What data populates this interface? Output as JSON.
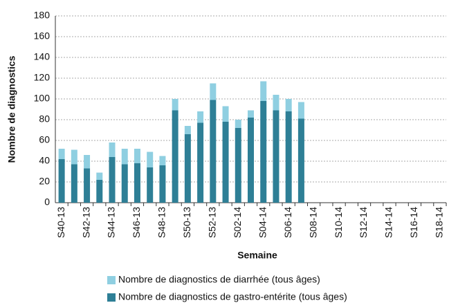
{
  "chart_data": {
    "type": "stacked_bar",
    "y_label": "Nombre de diagnostics",
    "x_label": "Semaine",
    "categories": [
      "S40-13",
      null,
      "S42-13",
      null,
      "S44-13",
      null,
      "S46-13",
      null,
      "S48-13",
      null,
      "S50-13",
      null,
      "S52-13",
      null,
      "S02-14",
      null,
      "S04-14",
      null,
      "S06-14",
      null,
      "S08-14",
      null,
      "S10-14",
      null,
      "S12-14",
      null,
      "S14-14",
      null,
      "S16-14",
      null,
      "S18-14"
    ],
    "series": [
      {
        "name": "Nombre de diagnostics de gastro-entérite (tous âges)",
        "color": "#2e7f96",
        "values": [
          42,
          37,
          33,
          22,
          44,
          37,
          38,
          34,
          36,
          89,
          66,
          77,
          99,
          78,
          72,
          82,
          98,
          89,
          88,
          81,
          null,
          null,
          null,
          null,
          null,
          null,
          null,
          null,
          null,
          null,
          null
        ]
      },
      {
        "name": "Nombre de diagnostics de diarrhée (tous âges)",
        "color": "#8fcfe1",
        "values": [
          10,
          14,
          13,
          7,
          14,
          15,
          14,
          15,
          9,
          11,
          8,
          11,
          16,
          15,
          8,
          7,
          19,
          15,
          12,
          16,
          null,
          null,
          null,
          null,
          null,
          null,
          null,
          null,
          null,
          null,
          null
        ]
      }
    ],
    "legend_order": [
      1,
      0
    ],
    "ylim": [
      0,
      180
    ],
    "yticks": [
      0,
      20,
      40,
      60,
      80,
      100,
      120,
      140,
      160,
      180
    ],
    "grid": true
  }
}
